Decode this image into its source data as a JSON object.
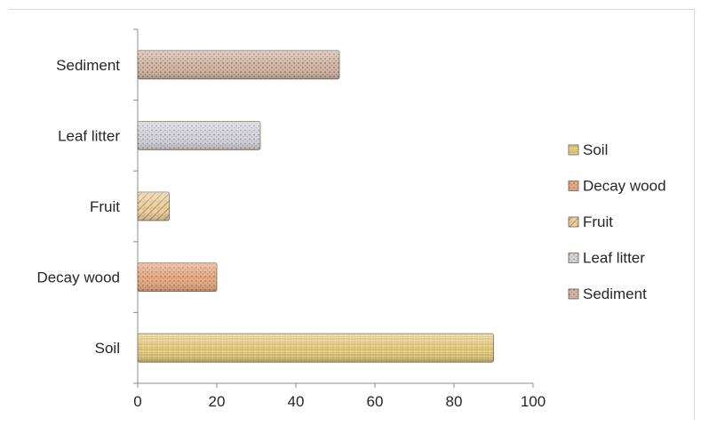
{
  "chart_data": {
    "type": "bar",
    "orientation": "horizontal",
    "categories": [
      "Soil",
      "Decay wood",
      "Fruit",
      "Leaf litter",
      "Sediment"
    ],
    "values": [
      90,
      20,
      8,
      31,
      51
    ],
    "xlim": [
      0,
      100
    ],
    "xticks": [
      "0",
      "20",
      "40",
      "60",
      "80",
      "100"
    ],
    "grid": false,
    "legend_position": "right",
    "legend": [
      {
        "label": "Soil",
        "color": "#e8d18a"
      },
      {
        "label": "Decay wood",
        "color": "#dba07a"
      },
      {
        "label": "Fruit",
        "color": "#e3c79a"
      },
      {
        "label": "Leaf litter",
        "color": "#c9c9cf"
      },
      {
        "label": "Sediment",
        "color": "#c8aa98"
      }
    ],
    "bar_colors": [
      "#e8d18a",
      "#dba07a",
      "#e3c79a",
      "#c9c9cf",
      "#c8aa98"
    ],
    "title": "",
    "xlabel": "",
    "ylabel": ""
  }
}
